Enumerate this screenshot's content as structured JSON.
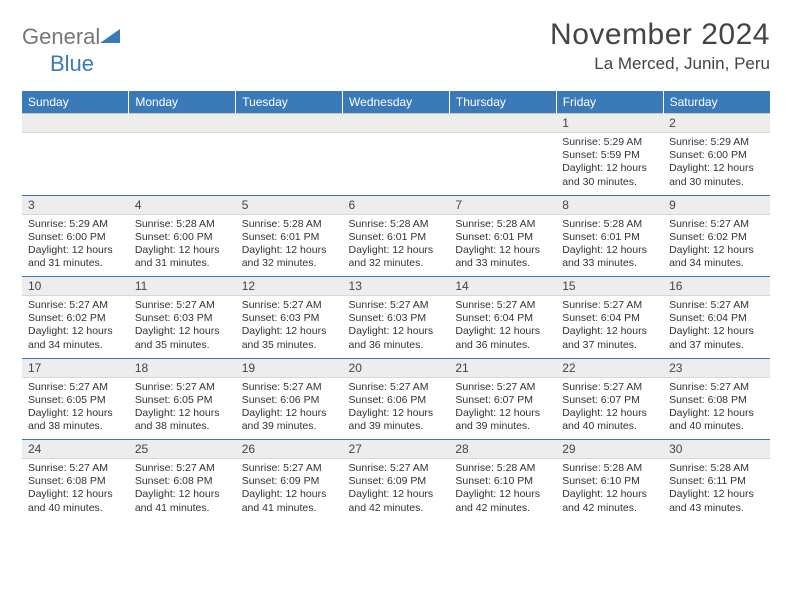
{
  "brand": {
    "part1": "General",
    "part2": "Blue"
  },
  "title": "November 2024",
  "location": "La Merced, Junin, Peru",
  "days_of_week": [
    "Sunday",
    "Monday",
    "Tuesday",
    "Wednesday",
    "Thursday",
    "Friday",
    "Saturday"
  ],
  "colors": {
    "header_bg": "#3a7ab8",
    "band_bg": "#ededed",
    "rule": "#3a7ab8"
  },
  "first_weekday_index": 5,
  "total_days": 30,
  "cells": {
    "1": {
      "sunrise": "5:29 AM",
      "sunset": "5:59 PM",
      "daylight": "12 hours and 30 minutes."
    },
    "2": {
      "sunrise": "5:29 AM",
      "sunset": "6:00 PM",
      "daylight": "12 hours and 30 minutes."
    },
    "3": {
      "sunrise": "5:29 AM",
      "sunset": "6:00 PM",
      "daylight": "12 hours and 31 minutes."
    },
    "4": {
      "sunrise": "5:28 AM",
      "sunset": "6:00 PM",
      "daylight": "12 hours and 31 minutes."
    },
    "5": {
      "sunrise": "5:28 AM",
      "sunset": "6:01 PM",
      "daylight": "12 hours and 32 minutes."
    },
    "6": {
      "sunrise": "5:28 AM",
      "sunset": "6:01 PM",
      "daylight": "12 hours and 32 minutes."
    },
    "7": {
      "sunrise": "5:28 AM",
      "sunset": "6:01 PM",
      "daylight": "12 hours and 33 minutes."
    },
    "8": {
      "sunrise": "5:28 AM",
      "sunset": "6:01 PM",
      "daylight": "12 hours and 33 minutes."
    },
    "9": {
      "sunrise": "5:27 AM",
      "sunset": "6:02 PM",
      "daylight": "12 hours and 34 minutes."
    },
    "10": {
      "sunrise": "5:27 AM",
      "sunset": "6:02 PM",
      "daylight": "12 hours and 34 minutes."
    },
    "11": {
      "sunrise": "5:27 AM",
      "sunset": "6:03 PM",
      "daylight": "12 hours and 35 minutes."
    },
    "12": {
      "sunrise": "5:27 AM",
      "sunset": "6:03 PM",
      "daylight": "12 hours and 35 minutes."
    },
    "13": {
      "sunrise": "5:27 AM",
      "sunset": "6:03 PM",
      "daylight": "12 hours and 36 minutes."
    },
    "14": {
      "sunrise": "5:27 AM",
      "sunset": "6:04 PM",
      "daylight": "12 hours and 36 minutes."
    },
    "15": {
      "sunrise": "5:27 AM",
      "sunset": "6:04 PM",
      "daylight": "12 hours and 37 minutes."
    },
    "16": {
      "sunrise": "5:27 AM",
      "sunset": "6:04 PM",
      "daylight": "12 hours and 37 minutes."
    },
    "17": {
      "sunrise": "5:27 AM",
      "sunset": "6:05 PM",
      "daylight": "12 hours and 38 minutes."
    },
    "18": {
      "sunrise": "5:27 AM",
      "sunset": "6:05 PM",
      "daylight": "12 hours and 38 minutes."
    },
    "19": {
      "sunrise": "5:27 AM",
      "sunset": "6:06 PM",
      "daylight": "12 hours and 39 minutes."
    },
    "20": {
      "sunrise": "5:27 AM",
      "sunset": "6:06 PM",
      "daylight": "12 hours and 39 minutes."
    },
    "21": {
      "sunrise": "5:27 AM",
      "sunset": "6:07 PM",
      "daylight": "12 hours and 39 minutes."
    },
    "22": {
      "sunrise": "5:27 AM",
      "sunset": "6:07 PM",
      "daylight": "12 hours and 40 minutes."
    },
    "23": {
      "sunrise": "5:27 AM",
      "sunset": "6:08 PM",
      "daylight": "12 hours and 40 minutes."
    },
    "24": {
      "sunrise": "5:27 AM",
      "sunset": "6:08 PM",
      "daylight": "12 hours and 40 minutes."
    },
    "25": {
      "sunrise": "5:27 AM",
      "sunset": "6:08 PM",
      "daylight": "12 hours and 41 minutes."
    },
    "26": {
      "sunrise": "5:27 AM",
      "sunset": "6:09 PM",
      "daylight": "12 hours and 41 minutes."
    },
    "27": {
      "sunrise": "5:27 AM",
      "sunset": "6:09 PM",
      "daylight": "12 hours and 42 minutes."
    },
    "28": {
      "sunrise": "5:28 AM",
      "sunset": "6:10 PM",
      "daylight": "12 hours and 42 minutes."
    },
    "29": {
      "sunrise": "5:28 AM",
      "sunset": "6:10 PM",
      "daylight": "12 hours and 42 minutes."
    },
    "30": {
      "sunrise": "5:28 AM",
      "sunset": "6:11 PM",
      "daylight": "12 hours and 43 minutes."
    }
  },
  "labels": {
    "sunrise": "Sunrise: ",
    "sunset": "Sunset: ",
    "daylight": "Daylight: "
  }
}
